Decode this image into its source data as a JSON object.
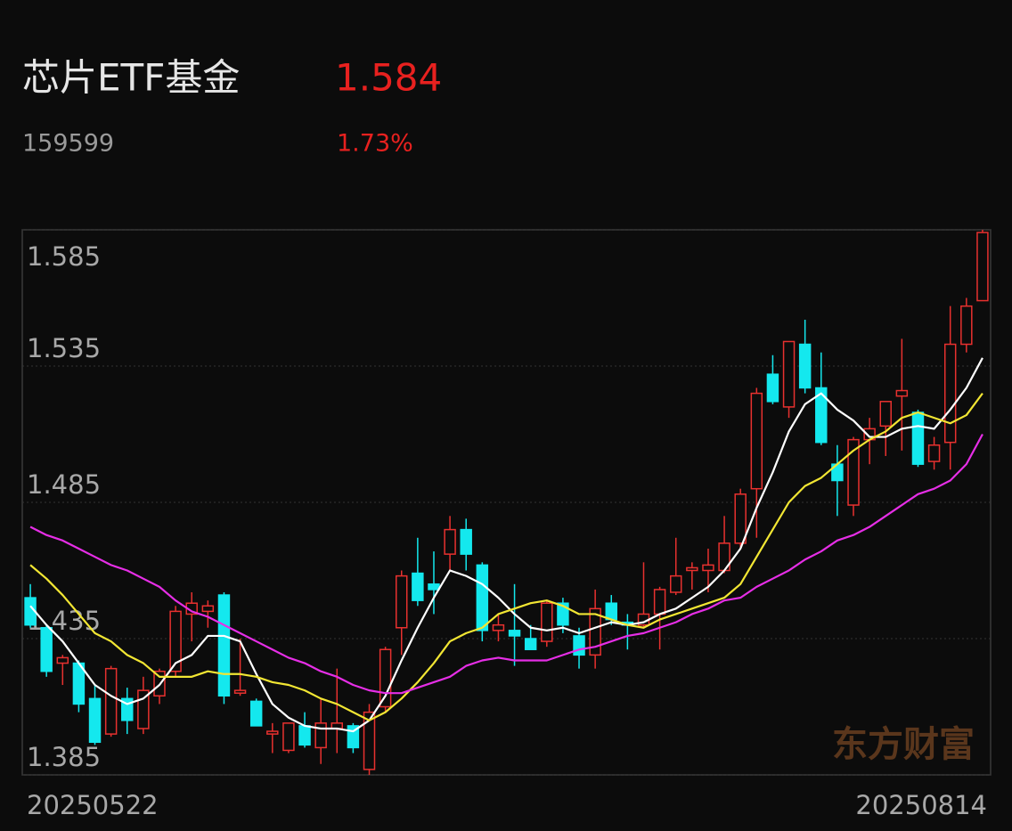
{
  "header": {
    "title": "芯片ETF基金",
    "price": "1.584",
    "code": "159599",
    "change": "1.73%"
  },
  "watermark": "东方财富",
  "chart_data": {
    "type": "candlestick",
    "categories": [
      "20250522",
      null,
      null,
      null,
      null,
      null,
      null,
      null,
      null,
      null,
      null,
      null,
      null,
      null,
      null,
      null,
      null,
      null,
      null,
      null,
      null,
      null,
      null,
      null,
      null,
      null,
      null,
      null,
      null,
      null,
      null,
      null,
      null,
      null,
      null,
      null,
      null,
      null,
      null,
      null,
      null,
      null,
      null,
      null,
      null,
      null,
      null,
      null,
      null,
      null,
      null,
      null,
      null,
      null,
      null,
      null,
      null,
      null,
      null,
      "20250814"
    ],
    "open": [
      1.45,
      1.439,
      1.426,
      1.426,
      1.413,
      1.4,
      1.413,
      1.402,
      1.414,
      1.423,
      1.444,
      1.445,
      1.451,
      1.415,
      1.412,
      1.4,
      1.394,
      1.403,
      1.395,
      1.402,
      1.403,
      1.387,
      1.41,
      1.439,
      1.459,
      1.455,
      1.466,
      1.475,
      1.462,
      1.438,
      1.438,
      1.435,
      1.434,
      1.448,
      1.436,
      1.429,
      1.448,
      1.441,
      1.44,
      1.444,
      1.452,
      1.46,
      1.46,
      1.46,
      1.47,
      1.49,
      1.532,
      1.52,
      1.543,
      1.527,
      1.499,
      1.484,
      1.508,
      1.513,
      1.524,
      1.518,
      1.5,
      1.507,
      1.543,
      1.559
    ],
    "high": [
      1.455,
      1.44,
      1.429,
      1.427,
      1.418,
      1.425,
      1.417,
      1.421,
      1.424,
      1.447,
      1.452,
      1.449,
      1.452,
      1.435,
      1.413,
      1.404,
      1.404,
      1.408,
      1.413,
      1.424,
      1.404,
      1.411,
      1.432,
      1.46,
      1.472,
      1.467,
      1.48,
      1.479,
      1.463,
      1.444,
      1.455,
      1.44,
      1.449,
      1.45,
      1.439,
      1.453,
      1.451,
      1.444,
      1.463,
      1.454,
      1.472,
      1.463,
      1.468,
      1.48,
      1.49,
      1.527,
      1.539,
      1.544,
      1.552,
      1.54,
      1.506,
      1.509,
      1.516,
      1.522,
      1.545,
      1.519,
      1.509,
      1.557,
      1.56,
      1.585
    ],
    "low": [
      1.439,
      1.421,
      1.418,
      1.408,
      1.396,
      1.399,
      1.4,
      1.4,
      1.411,
      1.421,
      1.434,
      1.439,
      1.411,
      1.414,
      1.403,
      1.393,
      1.393,
      1.395,
      1.389,
      1.393,
      1.393,
      1.385,
      1.408,
      1.429,
      1.447,
      1.444,
      1.46,
      1.46,
      1.434,
      1.434,
      1.425,
      1.431,
      1.432,
      1.437,
      1.424,
      1.424,
      1.44,
      1.431,
      1.439,
      1.431,
      1.451,
      1.453,
      1.452,
      1.459,
      1.468,
      1.472,
      1.521,
      1.516,
      1.525,
      1.506,
      1.48,
      1.48,
      1.499,
      1.502,
      1.504,
      1.498,
      1.497,
      1.497,
      1.54,
      1.559
    ],
    "close": [
      1.44,
      1.423,
      1.428,
      1.411,
      1.397,
      1.424,
      1.405,
      1.416,
      1.423,
      1.445,
      1.448,
      1.447,
      1.414,
      1.416,
      1.403,
      1.401,
      1.404,
      1.396,
      1.404,
      1.404,
      1.395,
      1.408,
      1.431,
      1.458,
      1.449,
      1.453,
      1.475,
      1.466,
      1.438,
      1.44,
      1.436,
      1.431,
      1.448,
      1.44,
      1.429,
      1.446,
      1.442,
      1.44,
      1.444,
      1.453,
      1.458,
      1.461,
      1.462,
      1.47,
      1.488,
      1.525,
      1.522,
      1.544,
      1.527,
      1.507,
      1.493,
      1.508,
      1.512,
      1.522,
      1.526,
      1.499,
      1.506,
      1.543,
      1.557,
      1.584
    ],
    "up_color": "#e8312f",
    "down_color": "#14e8ee",
    "lines": [
      {
        "color": "#ffffff",
        "values": [
          1.447,
          1.44,
          1.434,
          1.426,
          1.418,
          1.414,
          1.411,
          1.413,
          1.418,
          1.426,
          1.429,
          1.436,
          1.436,
          1.434,
          1.422,
          1.411,
          1.406,
          1.403,
          1.402,
          1.402,
          1.401,
          1.405,
          1.414,
          1.427,
          1.439,
          1.45,
          1.46,
          1.458,
          1.455,
          1.45,
          1.444,
          1.439,
          1.438,
          1.439,
          1.437,
          1.439,
          1.441,
          1.44,
          1.441,
          1.444,
          1.446,
          1.45,
          1.454,
          1.46,
          1.468,
          1.483,
          1.496,
          1.511,
          1.521,
          1.525,
          1.519,
          1.515,
          1.509,
          1.509,
          1.512,
          1.513,
          1.512,
          1.519,
          1.527,
          1.538
        ]
      },
      {
        "color": "#f2e633",
        "values": [
          1.462,
          1.457,
          1.451,
          1.444,
          1.437,
          1.434,
          1.429,
          1.426,
          1.421,
          1.421,
          1.421,
          1.423,
          1.422,
          1.422,
          1.421,
          1.419,
          1.418,
          1.416,
          1.413,
          1.411,
          1.408,
          1.405,
          1.408,
          1.413,
          1.419,
          1.426,
          1.434,
          1.437,
          1.439,
          1.444,
          1.446,
          1.448,
          1.449,
          1.447,
          1.444,
          1.444,
          1.442,
          1.44,
          1.439,
          1.442,
          1.444,
          1.446,
          1.448,
          1.45,
          1.455,
          1.465,
          1.475,
          1.485,
          1.491,
          1.494,
          1.499,
          1.504,
          1.508,
          1.511,
          1.516,
          1.518,
          1.516,
          1.514,
          1.517,
          1.525
        ]
      },
      {
        "color": "#e62ee6",
        "values": [
          1.476,
          1.473,
          1.471,
          1.468,
          1.465,
          1.462,
          1.46,
          1.457,
          1.454,
          1.449,
          1.445,
          1.443,
          1.44,
          1.437,
          1.434,
          1.431,
          1.428,
          1.426,
          1.423,
          1.421,
          1.418,
          1.416,
          1.415,
          1.415,
          1.417,
          1.419,
          1.421,
          1.425,
          1.427,
          1.428,
          1.427,
          1.427,
          1.427,
          1.429,
          1.431,
          1.432,
          1.434,
          1.436,
          1.437,
          1.439,
          1.441,
          1.444,
          1.446,
          1.449,
          1.45,
          1.454,
          1.457,
          1.46,
          1.464,
          1.467,
          1.471,
          1.473,
          1.476,
          1.48,
          1.484,
          1.488,
          1.49,
          1.493,
          1.499,
          1.51
        ]
      }
    ],
    "ylim": [
      1.385,
      1.585
    ],
    "yticks": [
      1.385,
      1.435,
      1.485,
      1.535,
      1.585
    ],
    "grid": true
  }
}
